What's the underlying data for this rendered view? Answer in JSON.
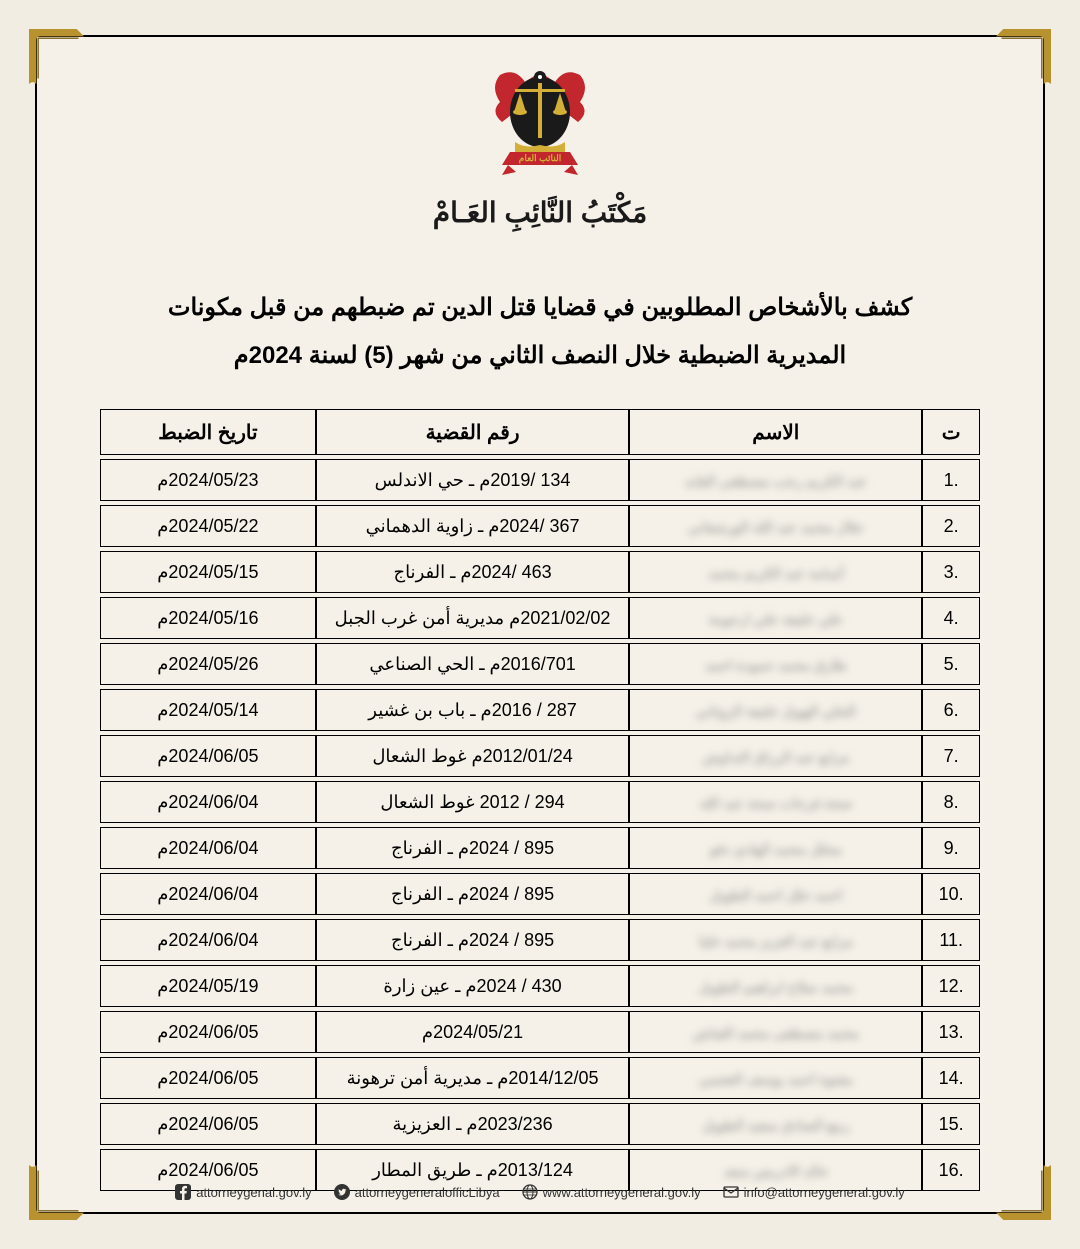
{
  "office_name": "مَكْتَبُ النَّائِبِ العَـامْ",
  "title_line1": "كشف بالأشخاص المطلوبين في قضايا قتل الدين تم ضبطهم من قبل مكونات",
  "title_line2": "المديرية الضبطية خلال النصف الثاني من شهر (5) لسنة 2024م",
  "columns": {
    "index": "ت",
    "name": "الاسم",
    "case": "رقم القضية",
    "date": "تاريخ الضبط"
  },
  "rows": [
    {
      "i": ".1",
      "name": "عبد الكريم رجب مصطفى القايد",
      "case": "134 /2019م ـ حي الاندلس",
      "date": "2024/05/23م"
    },
    {
      "i": ".2",
      "name": "جلال محمد عبد الله الورشفاني",
      "case": "367 /2024م ـ زاوية الدهماني",
      "date": "2024/05/22م"
    },
    {
      "i": ".3",
      "name": "أسامة عبد الكريم محمد",
      "case": "463 /2024م ـ الفرناج",
      "date": "2024/05/15م"
    },
    {
      "i": ".4",
      "name": "علي خليفة علي ارحومة",
      "case": "2021/02/02م مديرية أمن غرب الجبل",
      "date": "2024/05/16م"
    },
    {
      "i": ".5",
      "name": "طارق محمد حمودة احمد",
      "case": "2016/701م ـ الحي الصناعي",
      "date": "2024/05/26م"
    },
    {
      "i": ".6",
      "name": "الحلي الهويل خليفة الزوتاني",
      "case": "287 / 2016م ـ باب بن غشير",
      "date": "2024/05/14م"
    },
    {
      "i": ".7",
      "name": "مرابع عبد الرزاق التداوش",
      "case": "2012/01/24م غوط الشعال",
      "date": "2024/06/05م"
    },
    {
      "i": ".8",
      "name": "صحة فرحات صحة عبد الله",
      "case": "294 / 2012 غوط الشعال",
      "date": "2024/06/04م"
    },
    {
      "i": ".9",
      "name": "محلل محمد الهادي دقو",
      "case": "895 / 2024م ـ الفرناج",
      "date": "2024/06/04م"
    },
    {
      "i": ".10",
      "name": "احمد خلل احمد الطويل",
      "case": "895 / 2024م ـ الفرناج",
      "date": "2024/06/04م"
    },
    {
      "i": ".11",
      "name": "مرابع عبد العزيز محمد خليا",
      "case": "895 / 2024م ـ الفرناج",
      "date": "2024/06/04م"
    },
    {
      "i": ".12",
      "name": "محمد صلاح ابراهيم الطويل",
      "case": "430 / 2024م ـ عين زارة",
      "date": "2024/05/19م"
    },
    {
      "i": ".13",
      "name": "محمد مصطفى محمد القناش",
      "case": "2024/05/21م",
      "date": "2024/06/05م"
    },
    {
      "i": ".14",
      "name": "مفتوة احمد يوسف العجمي",
      "case": "2014/12/05م ـ مديرية أمن ترهونة",
      "date": "2024/06/05م"
    },
    {
      "i": ".15",
      "name": "ربيع الصادق سعيد الطويل",
      "case": "2023/236م ـ العزيزية",
      "date": "2024/06/05م"
    },
    {
      "i": ".16",
      "name": "خالد الادريس سعد",
      "case": "2013/124م ـ طريق المطار",
      "date": "2024/06/05م"
    }
  ],
  "footer": {
    "facebook": "attorneygenal.gov.ly",
    "twitter": "attorneygeneralofficLibya",
    "web": "www.attorneygeneral.gov.ly",
    "email": "info@attorneygeneral.gov.ly"
  },
  "colors": {
    "page_bg": "#f2ede3",
    "frame_bg": "#f5f1e8",
    "border": "#000000",
    "corner_gold": "#b8922e",
    "text": "#000000",
    "blur_text": "#888888"
  }
}
